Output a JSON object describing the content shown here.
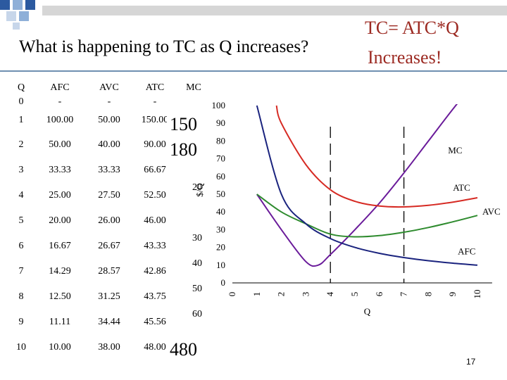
{
  "slide": {
    "question": "What is happening to TC as Q increases?",
    "formula": "TC= ATC*Q",
    "answer": "Increases!",
    "page_number": "17",
    "tc_callouts": [
      "150",
      "180",
      "480"
    ],
    "accent_color": "#9c2a22",
    "rule_color": "#6e8fb0"
  },
  "table": {
    "headers": [
      "Q",
      "AFC",
      "AVC",
      "ATC",
      "MC"
    ],
    "rows": [
      [
        "0",
        "-",
        "-",
        "-",
        ""
      ],
      [
        "1",
        "100.00",
        "50.00",
        "150.00",
        ""
      ],
      [
        "2",
        "50.00",
        "40.00",
        "90.00",
        ""
      ],
      [
        "3",
        "33.33",
        "33.33",
        "66.67",
        ""
      ],
      [
        "4",
        "25.00",
        "27.50",
        "52.50",
        ""
      ],
      [
        "5",
        "20.00",
        "26.00",
        "46.00",
        ""
      ],
      [
        "6",
        "16.67",
        "26.67",
        "43.33",
        ""
      ],
      [
        "7",
        "14.29",
        "28.57",
        "42.86",
        ""
      ],
      [
        "8",
        "12.50",
        "31.25",
        "43.75",
        ""
      ],
      [
        "9",
        "11.11",
        "34.44",
        "45.56",
        ""
      ],
      [
        "10",
        "10.00",
        "38.00",
        "48.00",
        ""
      ]
    ],
    "mc_partial_values": [
      "10",
      "20",
      "30",
      "40",
      "50",
      "60"
    ]
  },
  "chart_data": {
    "type": "line",
    "xlabel": "Q",
    "ylabel": "$/Q",
    "xlim": [
      0,
      10
    ],
    "ylim": [
      0,
      100
    ],
    "xticks": [
      "0",
      "1",
      "2",
      "3",
      "4",
      "5",
      "6",
      "7",
      "8",
      "9",
      "10"
    ],
    "yticks": [
      "0",
      "10",
      "20",
      "30",
      "40",
      "50",
      "60",
      "70",
      "80",
      "90",
      "100"
    ],
    "reference_lines_x": [
      4,
      7
    ],
    "series": [
      {
        "name": "MC",
        "color": "#6a1b9a",
        "x": [
          1,
          2,
          3,
          3.5,
          4,
          5,
          6,
          7,
          8,
          9,
          10
        ],
        "y": [
          50,
          30,
          12,
          10,
          16,
          30,
          45,
          62,
          80,
          98,
          115
        ]
      },
      {
        "name": "ATC",
        "color": "#d62a23",
        "x": [
          1.8,
          2,
          3,
          4,
          5,
          6,
          7,
          8,
          9,
          10
        ],
        "y": [
          100,
          90,
          66.67,
          52.5,
          46,
          43.33,
          42.86,
          43.75,
          45.56,
          48
        ]
      },
      {
        "name": "AVC",
        "color": "#2e8b2e",
        "x": [
          1,
          2,
          3,
          4,
          5,
          6,
          7,
          8,
          9,
          10
        ],
        "y": [
          50,
          40,
          33.33,
          27.5,
          26,
          26.67,
          28.57,
          31.25,
          34.44,
          38
        ]
      },
      {
        "name": "AFC",
        "color": "#1a237e",
        "x": [
          1,
          2,
          3,
          4,
          5,
          6,
          7,
          8,
          9,
          10
        ],
        "y": [
          100,
          50,
          33.33,
          25,
          20,
          16.67,
          14.29,
          12.5,
          11.11,
          10
        ]
      }
    ]
  }
}
